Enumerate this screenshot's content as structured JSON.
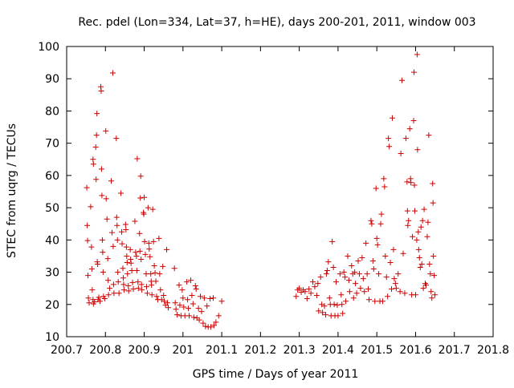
{
  "chart_data": {
    "type": "scatter",
    "title": "Rec. pdel (Lon=334, Lat=37, h=HE), days 200-201, 2011, window 003",
    "xlabel": "GPS time / Days of year 2011",
    "ylabel": "STEC from uqrg / TECUs",
    "xlim": [
      200.7,
      201.8
    ],
    "ylim": [
      10,
      100
    ],
    "xticks": [
      200.7,
      200.8,
      200.9,
      201,
      201.1,
      201.2,
      201.3,
      201.4,
      201.5,
      201.6,
      201.7,
      201.8
    ],
    "xtick_labels": [
      "200.7",
      "200.8",
      "200.9",
      "201",
      "201.1",
      "201.2",
      "201.3",
      "201.4",
      "201.5",
      "201.6",
      "201.7",
      "201.8"
    ],
    "yticks": [
      10,
      20,
      30,
      40,
      50,
      60,
      70,
      80,
      90,
      100
    ],
    "ytick_labels": [
      "10",
      "20",
      "30",
      "40",
      "50",
      "60",
      "70",
      "80",
      "90",
      "100"
    ],
    "grid": false,
    "legend": "none",
    "marker": "plus",
    "color": "#cc0000",
    "points": [
      [
        200.752,
        56.2
      ],
      [
        200.753,
        44.5
      ],
      [
        200.754,
        39.8
      ],
      [
        200.755,
        29.0
      ],
      [
        200.756,
        22.0
      ],
      [
        200.758,
        20.5
      ],
      [
        200.762,
        50.3
      ],
      [
        200.764,
        37.8
      ],
      [
        200.765,
        31.0
      ],
      [
        200.766,
        24.5
      ],
      [
        200.768,
        21.5
      ],
      [
        200.769,
        20.2
      ],
      [
        200.768,
        65.0
      ],
      [
        200.769,
        63.5
      ],
      [
        200.772,
        20.8
      ],
      [
        200.775,
        68.8
      ],
      [
        200.776,
        58.8
      ],
      [
        200.777,
        72.5
      ],
      [
        200.778,
        79.2
      ],
      [
        200.779,
        33.2
      ],
      [
        200.78,
        32.5
      ],
      [
        200.781,
        21.5
      ],
      [
        200.783,
        22.2
      ],
      [
        200.786,
        21.0
      ],
      [
        200.788,
        87.5
      ],
      [
        200.789,
        86.2
      ],
      [
        200.79,
        62.0
      ],
      [
        200.791,
        53.8
      ],
      [
        200.792,
        40.0
      ],
      [
        200.793,
        36.2
      ],
      [
        200.794,
        30.0
      ],
      [
        200.795,
        22.5
      ],
      [
        200.798,
        21.8
      ],
      [
        200.801,
        73.8
      ],
      [
        200.802,
        52.8
      ],
      [
        200.804,
        46.5
      ],
      [
        200.806,
        34.2
      ],
      [
        200.807,
        27.5
      ],
      [
        200.808,
        23.0
      ],
      [
        200.811,
        25.0
      ],
      [
        200.815,
        58.3
      ],
      [
        200.817,
        42.3
      ],
      [
        200.819,
        91.8
      ],
      [
        200.82,
        38.0
      ],
      [
        200.821,
        26.2
      ],
      [
        200.822,
        23.5
      ],
      [
        200.828,
        71.5
      ],
      [
        200.829,
        47.0
      ],
      [
        200.83,
        44.5
      ],
      [
        200.831,
        40.0
      ],
      [
        200.832,
        30.0
      ],
      [
        200.833,
        27.0
      ],
      [
        200.835,
        23.5
      ],
      [
        200.84,
        54.5
      ],
      [
        200.842,
        42.5
      ],
      [
        200.843,
        38.8
      ],
      [
        200.845,
        31.2
      ],
      [
        200.846,
        28.2
      ],
      [
        200.847,
        26.2
      ],
      [
        200.848,
        24.5
      ],
      [
        200.852,
        44.8
      ],
      [
        200.853,
        43.2
      ],
      [
        200.854,
        37.8
      ],
      [
        200.855,
        35.0
      ],
      [
        200.856,
        33.0
      ],
      [
        200.857,
        29.5
      ],
      [
        200.859,
        25.8
      ],
      [
        200.86,
        24.2
      ],
      [
        200.864,
        37.0
      ],
      [
        200.865,
        34.0
      ],
      [
        200.866,
        32.8
      ],
      [
        200.868,
        30.5
      ],
      [
        200.87,
        26.8
      ],
      [
        200.872,
        24.8
      ],
      [
        200.876,
        45.8
      ],
      [
        200.878,
        36.2
      ],
      [
        200.88,
        35.0
      ],
      [
        200.881,
        30.5
      ],
      [
        200.882,
        65.2
      ],
      [
        200.884,
        27.0
      ],
      [
        200.885,
        25.0
      ],
      [
        200.888,
        42.0
      ],
      [
        200.889,
        36.5
      ],
      [
        200.89,
        53.0
      ],
      [
        200.891,
        59.8
      ],
      [
        200.892,
        34.0
      ],
      [
        200.893,
        26.2
      ],
      [
        200.894,
        24.5
      ],
      [
        200.898,
        48.5
      ],
      [
        200.899,
        48.0
      ],
      [
        200.9,
        53.2
      ],
      [
        200.901,
        39.5
      ],
      [
        200.903,
        35.5
      ],
      [
        200.905,
        29.5
      ],
      [
        200.906,
        25.5
      ],
      [
        200.908,
        23.5
      ],
      [
        200.91,
        50.0
      ],
      [
        200.912,
        39.0
      ],
      [
        200.913,
        37.2
      ],
      [
        200.915,
        34.8
      ],
      [
        200.917,
        29.5
      ],
      [
        200.918,
        27.2
      ],
      [
        200.919,
        26.0
      ],
      [
        200.92,
        23.0
      ],
      [
        200.922,
        49.5
      ],
      [
        200.924,
        39.5
      ],
      [
        200.926,
        32.0
      ],
      [
        200.928,
        29.8
      ],
      [
        200.93,
        27.2
      ],
      [
        200.932,
        22.5
      ],
      [
        200.935,
        21.5
      ],
      [
        200.938,
        40.5
      ],
      [
        200.94,
        29.5
      ],
      [
        200.942,
        24.5
      ],
      [
        200.945,
        21.5
      ],
      [
        200.948,
        31.8
      ],
      [
        200.95,
        22.8
      ],
      [
        200.952,
        21.0
      ],
      [
        200.955,
        19.8
      ],
      [
        200.958,
        37.0
      ],
      [
        200.96,
        20.5
      ],
      [
        200.962,
        19.0
      ],
      [
        200.978,
        31.2
      ],
      [
        200.98,
        20.5
      ],
      [
        200.982,
        18.5
      ],
      [
        200.985,
        16.8
      ],
      [
        200.99,
        26.0
      ],
      [
        200.992,
        19.8
      ],
      [
        200.995,
        16.5
      ],
      [
        200.998,
        24.5
      ],
      [
        201.0,
        22.0
      ],
      [
        201.002,
        19.2
      ],
      [
        201.005,
        16.5
      ],
      [
        201.01,
        27.0
      ],
      [
        201.012,
        21.5
      ],
      [
        201.014,
        18.8
      ],
      [
        201.016,
        16.5
      ],
      [
        201.02,
        27.5
      ],
      [
        201.023,
        22.8
      ],
      [
        201.026,
        20.2
      ],
      [
        201.028,
        16.0
      ],
      [
        201.032,
        25.8
      ],
      [
        201.034,
        24.8
      ],
      [
        201.036,
        15.8
      ],
      [
        201.04,
        18.8
      ],
      [
        201.042,
        15.2
      ],
      [
        201.045,
        22.5
      ],
      [
        201.048,
        17.8
      ],
      [
        201.052,
        14.2
      ],
      [
        201.055,
        22.0
      ],
      [
        201.058,
        13.2
      ],
      [
        201.062,
        19.5
      ],
      [
        201.065,
        13.0
      ],
      [
        201.07,
        21.8
      ],
      [
        201.072,
        13.0
      ],
      [
        201.078,
        22.0
      ],
      [
        201.08,
        13.5
      ],
      [
        201.085,
        14.5
      ],
      [
        201.092,
        16.5
      ],
      [
        201.1,
        21.0
      ],
      [
        201.292,
        22.5
      ],
      [
        201.296,
        24.5
      ],
      [
        201.3,
        25.0
      ],
      [
        201.305,
        23.8
      ],
      [
        201.31,
        24.5
      ],
      [
        201.315,
        24.0
      ],
      [
        201.32,
        21.8
      ],
      [
        201.325,
        24.8
      ],
      [
        201.33,
        23.5
      ],
      [
        201.335,
        27.0
      ],
      [
        201.34,
        25.5
      ],
      [
        201.345,
        22.8
      ],
      [
        201.348,
        26.5
      ],
      [
        201.35,
        18.0
      ],
      [
        201.355,
        28.5
      ],
      [
        201.358,
        20.0
      ],
      [
        201.36,
        17.5
      ],
      [
        201.365,
        19.5
      ],
      [
        201.368,
        16.8
      ],
      [
        201.37,
        29.5
      ],
      [
        201.372,
        30.5
      ],
      [
        201.375,
        33.2
      ],
      [
        201.378,
        22.0
      ],
      [
        201.38,
        20.0
      ],
      [
        201.382,
        16.5
      ],
      [
        201.385,
        39.5
      ],
      [
        201.388,
        31.5
      ],
      [
        201.39,
        20.0
      ],
      [
        201.392,
        16.5
      ],
      [
        201.395,
        27.0
      ],
      [
        201.398,
        19.8
      ],
      [
        201.4,
        16.5
      ],
      [
        201.405,
        29.5
      ],
      [
        201.408,
        23.0
      ],
      [
        201.41,
        20.0
      ],
      [
        201.412,
        17.2
      ],
      [
        201.415,
        30.0
      ],
      [
        201.418,
        28.5
      ],
      [
        201.42,
        21.0
      ],
      [
        201.425,
        35.0
      ],
      [
        201.428,
        27.5
      ],
      [
        201.43,
        24.0
      ],
      [
        201.435,
        32.0
      ],
      [
        201.438,
        29.5
      ],
      [
        201.44,
        22.0
      ],
      [
        201.443,
        30.0
      ],
      [
        201.445,
        26.5
      ],
      [
        201.448,
        23.5
      ],
      [
        201.452,
        33.5
      ],
      [
        201.455,
        29.5
      ],
      [
        201.458,
        25.0
      ],
      [
        201.462,
        34.5
      ],
      [
        201.465,
        28.0
      ],
      [
        201.468,
        24.0
      ],
      [
        201.472,
        39.0
      ],
      [
        201.475,
        29.5
      ],
      [
        201.478,
        24.8
      ],
      [
        201.48,
        21.5
      ],
      [
        201.485,
        46.0
      ],
      [
        201.487,
        45.0
      ],
      [
        201.49,
        33.5
      ],
      [
        201.492,
        31.0
      ],
      [
        201.495,
        21.0
      ],
      [
        201.498,
        56.0
      ],
      [
        201.5,
        40.5
      ],
      [
        201.502,
        38.5
      ],
      [
        201.505,
        29.5
      ],
      [
        201.508,
        21.0
      ],
      [
        201.51,
        45.0
      ],
      [
        201.512,
        48.0
      ],
      [
        201.515,
        21.0
      ],
      [
        201.518,
        59.0
      ],
      [
        201.52,
        56.5
      ],
      [
        201.522,
        35.0
      ],
      [
        201.525,
        28.5
      ],
      [
        201.528,
        22.5
      ],
      [
        201.53,
        71.5
      ],
      [
        201.532,
        69.0
      ],
      [
        201.535,
        33.0
      ],
      [
        201.538,
        24.8
      ],
      [
        201.54,
        77.8
      ],
      [
        201.543,
        37.0
      ],
      [
        201.545,
        28.0
      ],
      [
        201.548,
        26.5
      ],
      [
        201.55,
        25.0
      ],
      [
        201.555,
        29.5
      ],
      [
        201.56,
        24.0
      ],
      [
        201.562,
        66.8
      ],
      [
        201.565,
        89.5
      ],
      [
        201.568,
        35.8
      ],
      [
        201.572,
        23.5
      ],
      [
        201.575,
        71.5
      ],
      [
        201.578,
        58.0
      ],
      [
        201.58,
        44.5
      ],
      [
        201.585,
        74.5
      ],
      [
        201.587,
        59.0
      ],
      [
        201.588,
        57.8
      ],
      [
        201.59,
        23.0
      ],
      [
        201.595,
        77.0
      ],
      [
        201.596,
        92.0
      ],
      [
        201.597,
        57.0
      ],
      [
        201.598,
        49.0
      ],
      [
        201.6,
        23.0
      ],
      [
        201.604,
        97.5
      ],
      [
        201.605,
        68.0
      ],
      [
        201.607,
        42.5
      ],
      [
        201.608,
        37.0
      ],
      [
        201.61,
        34.5
      ],
      [
        201.612,
        31.5
      ],
      [
        201.614,
        44.0
      ],
      [
        201.616,
        32.5
      ],
      [
        201.62,
        25.0
      ],
      [
        201.622,
        49.5
      ],
      [
        201.625,
        26.5
      ],
      [
        201.627,
        26.0
      ],
      [
        201.63,
        41.0
      ],
      [
        201.632,
        45.5
      ],
      [
        201.634,
        72.5
      ],
      [
        201.636,
        32.5
      ],
      [
        201.638,
        29.5
      ],
      [
        201.64,
        24.0
      ],
      [
        201.642,
        22.0
      ],
      [
        201.644,
        57.5
      ],
      [
        201.645,
        51.5
      ],
      [
        201.646,
        35.0
      ],
      [
        201.648,
        29.0
      ],
      [
        201.65,
        23.0
      ],
      [
        201.579,
        49.0
      ],
      [
        201.582,
        46.0
      ],
      [
        201.592,
        41.0
      ],
      [
        201.603,
        40.0
      ],
      [
        201.618,
        46.0
      ]
    ]
  }
}
